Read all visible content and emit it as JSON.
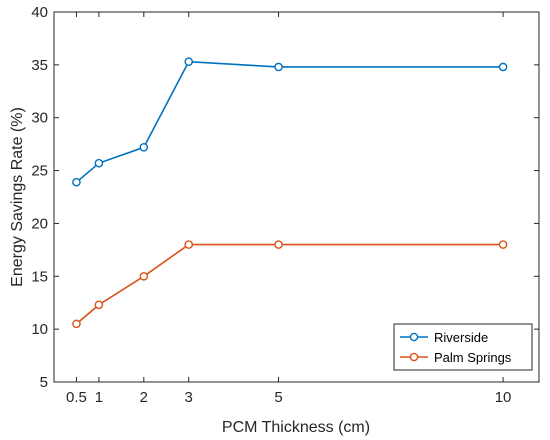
{
  "chart_data": {
    "type": "line",
    "x": [
      0.5,
      1,
      2,
      3,
      5,
      10
    ],
    "xticks": [
      "0.5",
      "1",
      "2",
      "3",
      "5",
      "10"
    ],
    "yticks": [
      "5",
      "10",
      "15",
      "20",
      "25",
      "30",
      "35",
      "40"
    ],
    "xlabel": "PCM Thickness (cm)",
    "ylabel": "Energy Savings Rate (%)",
    "xlim": [
      0,
      10.8
    ],
    "ylim": [
      5,
      40
    ],
    "grid": false,
    "legend_position": "bottom-right",
    "marker": "open-circle",
    "series": [
      {
        "name": "Riverside",
        "color": "#0072BD",
        "values": [
          23.9,
          25.7,
          27.2,
          35.3,
          34.8,
          34.8
        ]
      },
      {
        "name": "Palm Springs",
        "color": "#D95319",
        "values": [
          10.5,
          12.3,
          15.0,
          18.0,
          18.0,
          18.0
        ]
      }
    ]
  }
}
